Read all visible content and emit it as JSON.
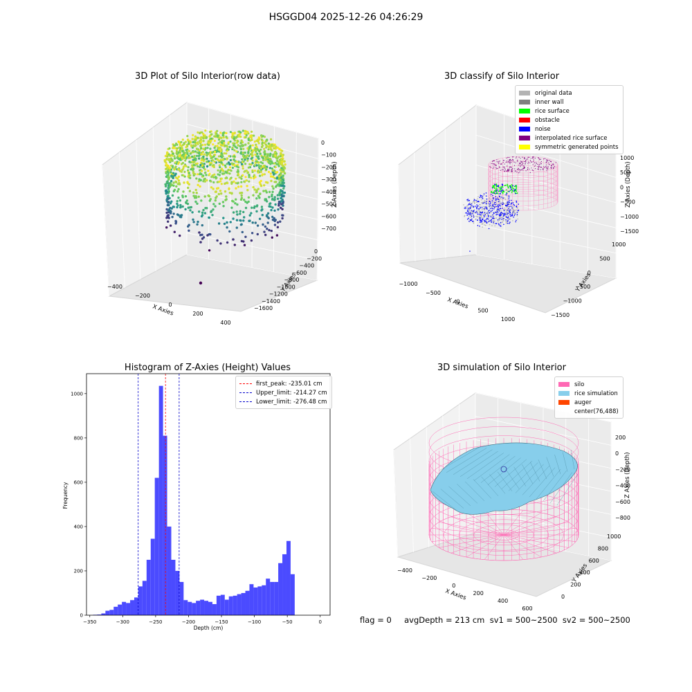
{
  "suptitle": "HSGGD04 2025-12-26 04:26:29",
  "panels": {
    "raw": {
      "title": "3D Plot of Silo Interior(row data)",
      "xlabel": "X Axies",
      "ylabel": "Y Axies",
      "zlabel": "Z Axies (Depth)",
      "xticks": [
        "−400",
        "−200",
        "0",
        "200",
        "400"
      ],
      "yticks": [
        "0",
        "−200",
        "−400",
        "−600",
        "−800",
        "−1000",
        "−1200",
        "−1400",
        "−1600"
      ],
      "zticks": [
        "0",
        "−100",
        "−200",
        "−300",
        "−400",
        "−500",
        "−600",
        "−700"
      ]
    },
    "classify": {
      "title": "3D classify of Silo Interior",
      "xlabel": "X Axies",
      "ylabel": "Y Axies",
      "zlabel": "Z Axies (Depth)",
      "xticks": [
        "−1000",
        "−500",
        "0",
        "500",
        "1000"
      ],
      "yticks": [
        "1000",
        "500",
        "0",
        "−500",
        "−1000",
        "−1500"
      ],
      "zticks": [
        "1000",
        "500",
        "0",
        "−500",
        "−1000",
        "−1500"
      ],
      "legend": [
        {
          "label": "original data",
          "color": "#b3b3b3"
        },
        {
          "label": "inner wall",
          "color": "#808080"
        },
        {
          "label": "rice surface",
          "color": "#00ff00"
        },
        {
          "label": "obstacle",
          "color": "#ff0000"
        },
        {
          "label": "noise",
          "color": "#0000ff"
        },
        {
          "label": "interpolated rice surface",
          "color": "#800080"
        },
        {
          "label": "symmetric generated points",
          "color": "#ffff00"
        }
      ]
    },
    "hist": {
      "title": "Histogram of Z-Axies (Height) Values",
      "xlabel": "Depth (cm)",
      "ylabel": "Frequency",
      "legend": [
        {
          "label": "first_peak: -235.01 cm",
          "color": "#ff0000"
        },
        {
          "label": "Upper_limit: -214.27 cm",
          "color": "#0000cc"
        },
        {
          "label": "Lower_limit: -276.48 cm",
          "color": "#0000cc"
        }
      ]
    },
    "sim": {
      "title": "3D simulation of Silo Interior",
      "xlabel": "X Axies",
      "ylabel": "Y Axies",
      "zlabel": "Z Axies (Depth)",
      "xticks": [
        "−400",
        "−200",
        "0",
        "200",
        "400",
        "600"
      ],
      "yticks": [
        "1000",
        "800",
        "600",
        "400",
        "200",
        "0"
      ],
      "zticks": [
        "200",
        "0",
        "−200",
        "−400",
        "−600",
        "−800"
      ],
      "legend": [
        {
          "label": "silo",
          "color": "#ff69b4"
        },
        {
          "label": "rice simulation",
          "color": "#87ceeb"
        },
        {
          "label": "auger",
          "color": "#ff4500"
        },
        {
          "label": "center(76,488)",
          "color": ""
        }
      ]
    }
  },
  "status": "flag = 0     avgDepth = 213 cm  sv1 = 500~2500  sv2 = 500~2500",
  "chart_data": [
    {
      "type": "bar",
      "title": "Histogram of Z-Axies (Height) Values",
      "xlabel": "Depth (cm)",
      "ylabel": "Frequency",
      "xlim": [
        -355,
        15
      ],
      "ylim": [
        0,
        1090
      ],
      "xticks": [
        -350,
        -300,
        -250,
        -200,
        -150,
        -100,
        -50,
        0
      ],
      "yticks": [
        0,
        200,
        400,
        600,
        800,
        1000
      ],
      "bin_start": -345,
      "bin_width": 6.25,
      "values": [
        2,
        3,
        8,
        20,
        24,
        38,
        48,
        60,
        55,
        68,
        80,
        130,
        155,
        250,
        345,
        620,
        1035,
        810,
        400,
        250,
        200,
        150,
        68,
        60,
        55,
        65,
        70,
        65,
        60,
        50,
        88,
        92,
        70,
        85,
        88,
        95,
        100,
        110,
        140,
        125,
        130,
        135,
        165,
        150,
        150,
        235,
        275,
        335,
        185
      ],
      "vlines": [
        {
          "name": "first_peak",
          "x": -235.01,
          "color": "#ff0000"
        },
        {
          "name": "Upper_limit",
          "x": -214.27,
          "color": "#0000cc"
        },
        {
          "name": "Lower_limit",
          "x": -276.48,
          "color": "#0000cc"
        }
      ],
      "bar_color": "#4b4bff"
    }
  ]
}
